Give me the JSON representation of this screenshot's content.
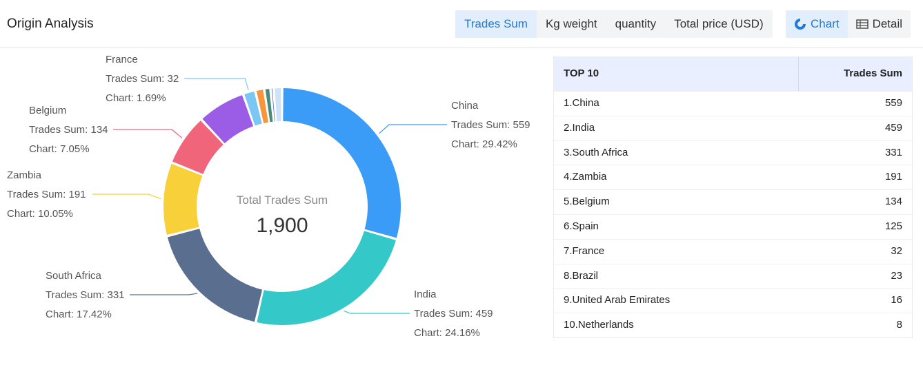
{
  "header": {
    "title": "Origin Analysis",
    "metric_tabs": [
      {
        "label": "Trades Sum",
        "active": true
      },
      {
        "label": "Kg weight",
        "active": false
      },
      {
        "label": "quantity",
        "active": false
      },
      {
        "label": "Total price (USD)",
        "active": false
      }
    ],
    "view_tabs": [
      {
        "label": "Chart",
        "icon": "donut-chart-icon",
        "active": true
      },
      {
        "label": "Detail",
        "icon": "table-icon",
        "active": false
      }
    ]
  },
  "center": {
    "label": "Total Trades Sum",
    "value": "1,900"
  },
  "table": {
    "header_rank": "TOP 10",
    "header_value": "Trades Sum",
    "rows": [
      {
        "name": "1.China",
        "value": "559"
      },
      {
        "name": "2.India",
        "value": "459"
      },
      {
        "name": "3.South Africa",
        "value": "331"
      },
      {
        "name": "4.Zambia",
        "value": "191"
      },
      {
        "name": "5.Belgium",
        "value": "134"
      },
      {
        "name": "6.Spain",
        "value": "125"
      },
      {
        "name": "7.France",
        "value": "32"
      },
      {
        "name": "8.Brazil",
        "value": "23"
      },
      {
        "name": "9.United Arab Emirates",
        "value": "16"
      },
      {
        "name": "10.Netherlands",
        "value": "8"
      }
    ]
  },
  "chart_data": {
    "type": "pie",
    "subtype": "donut",
    "total": 1900,
    "slices": [
      {
        "name": "China",
        "value": 559,
        "pct": "29.42%",
        "color": "#3a9cf7",
        "labeled": true,
        "label_side": "right"
      },
      {
        "name": "India",
        "value": 459,
        "pct": "24.16%",
        "color": "#35c8c8",
        "labeled": true,
        "label_side": "right"
      },
      {
        "name": "South Africa",
        "value": 331,
        "pct": "17.42%",
        "color": "#5a6f90",
        "labeled": true,
        "label_side": "left"
      },
      {
        "name": "Zambia",
        "value": 191,
        "pct": "10.05%",
        "color": "#f8d13a",
        "labeled": true,
        "label_side": "left"
      },
      {
        "name": "Belgium",
        "value": 134,
        "pct": "7.05%",
        "color": "#f0657a",
        "labeled": true,
        "label_side": "left"
      },
      {
        "name": "Spain",
        "value": 125,
        "pct": "",
        "color": "#9b5ce6",
        "labeled": false
      },
      {
        "name": "France",
        "value": 32,
        "pct": "1.69%",
        "color": "#7ac6f5",
        "labeled": true,
        "label_side": "left"
      },
      {
        "name": "Brazil",
        "value": 23,
        "pct": "",
        "color": "#f7943c",
        "labeled": false
      },
      {
        "name": "United Arab Emirates",
        "value": 16,
        "pct": "",
        "color": "#4a8a7a",
        "labeled": false
      },
      {
        "name": "Netherlands",
        "value": 8,
        "pct": "",
        "color": "#5470c6",
        "labeled": false
      },
      {
        "name": "",
        "value": 22,
        "pct": "",
        "color": "#cfe3f7",
        "labeled": false
      }
    ],
    "label_prefix_value": "Trades Sum: ",
    "label_prefix_pct": "Chart: "
  }
}
